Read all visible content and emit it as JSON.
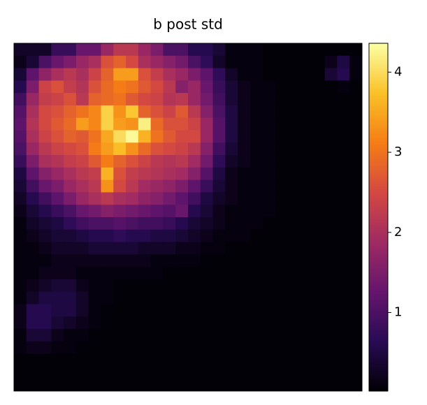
{
  "chart_data": {
    "type": "heatmap",
    "title": "b post std",
    "colormap": "inferno",
    "clim": [
      0.02,
      4.36
    ],
    "cticks": [
      1,
      2,
      3,
      4
    ],
    "z": [
      [
        0.3,
        0.3,
        0.3,
        0.8,
        0.8,
        1.3,
        1.3,
        1.8,
        2.2,
        2.2,
        1.8,
        1.5,
        1.0,
        1.0,
        0.6,
        0.6,
        0.4,
        0.1,
        0.1,
        0.1,
        0.05,
        0.05,
        0.05,
        0.05,
        0.05,
        0.05,
        0.05,
        0.05
      ],
      [
        0.2,
        0.4,
        1.0,
        1.3,
        1.5,
        1.8,
        2.0,
        2.6,
        2.8,
        2.5,
        2.0,
        1.8,
        1.6,
        1.4,
        1.0,
        0.7,
        0.3,
        0.1,
        0.1,
        0.1,
        0.05,
        0.05,
        0.05,
        0.05,
        0.05,
        0.2,
        0.5,
        0.1
      ],
      [
        0.4,
        1.2,
        1.7,
        2.0,
        2.2,
        2.0,
        2.4,
        2.8,
        3.4,
        3.4,
        2.6,
        2.3,
        2.0,
        1.8,
        1.5,
        1.2,
        0.7,
        0.3,
        0.1,
        0.1,
        0.05,
        0.05,
        0.05,
        0.05,
        0.05,
        0.4,
        0.6,
        0.1
      ],
      [
        0.6,
        1.5,
        2.4,
        2.6,
        2.3,
        2.1,
        2.6,
        2.9,
        3.1,
        3.0,
        2.7,
        2.5,
        2.2,
        1.6,
        1.8,
        1.3,
        0.8,
        0.4,
        0.2,
        0.1,
        0.1,
        0.05,
        0.05,
        0.05,
        0.05,
        0.05,
        0.1,
        0.05
      ],
      [
        0.9,
        1.8,
        2.3,
        2.4,
        2.6,
        2.2,
        2.8,
        2.9,
        3.0,
        2.7,
        2.5,
        2.4,
        2.1,
        2.2,
        1.8,
        1.4,
        0.9,
        0.4,
        0.2,
        0.1,
        0.1,
        0.05,
        0.05,
        0.05,
        0.05,
        0.05,
        0.05,
        0.05
      ],
      [
        1.1,
        2.0,
        2.5,
        2.6,
        2.8,
        3.0,
        3.2,
        3.9,
        3.3,
        3.8,
        2.8,
        2.6,
        2.4,
        2.7,
        2.2,
        1.6,
        1.0,
        0.5,
        0.2,
        0.1,
        0.1,
        0.05,
        0.05,
        0.05,
        0.05,
        0.05,
        0.05,
        0.05
      ],
      [
        1.2,
        2.1,
        2.5,
        2.7,
        2.9,
        3.4,
        3.2,
        3.9,
        3.4,
        3.3,
        4.2,
        2.9,
        2.6,
        2.6,
        2.4,
        1.8,
        1.1,
        0.5,
        0.2,
        0.1,
        0.1,
        0.05,
        0.05,
        0.05,
        0.05,
        0.05,
        0.05,
        0.05
      ],
      [
        1.1,
        2.0,
        2.4,
        2.6,
        2.8,
        2.7,
        3.0,
        3.5,
        4.0,
        4.3,
        3.6,
        3.0,
        2.7,
        2.5,
        2.5,
        1.8,
        1.1,
        0.5,
        0.2,
        0.1,
        0.1,
        0.05,
        0.05,
        0.05,
        0.05,
        0.05,
        0.05,
        0.05
      ],
      [
        1.0,
        1.8,
        2.2,
        2.4,
        2.5,
        2.6,
        3.1,
        3.4,
        3.7,
        3.3,
        2.9,
        2.6,
        2.5,
        2.4,
        2.2,
        1.6,
        0.9,
        0.4,
        0.2,
        0.1,
        0.1,
        0.05,
        0.05,
        0.05,
        0.05,
        0.05,
        0.05,
        0.05
      ],
      [
        0.8,
        1.5,
        2.0,
        2.1,
        2.3,
        2.4,
        2.7,
        3.1,
        2.8,
        2.6,
        2.4,
        2.2,
        2.1,
        2.2,
        1.9,
        1.4,
        0.7,
        0.3,
        0.2,
        0.1,
        0.1,
        0.05,
        0.05,
        0.05,
        0.05,
        0.05,
        0.05,
        0.05
      ],
      [
        0.5,
        1.2,
        1.6,
        1.8,
        2.0,
        2.2,
        2.3,
        3.6,
        2.6,
        2.3,
        2.2,
        2.1,
        2.0,
        1.9,
        1.6,
        1.1,
        0.5,
        0.2,
        0.1,
        0.1,
        0.1,
        0.05,
        0.05,
        0.05,
        0.05,
        0.05,
        0.05,
        0.05
      ],
      [
        0.4,
        0.9,
        1.3,
        1.5,
        1.8,
        2.0,
        2.2,
        3.3,
        2.5,
        2.2,
        1.9,
        1.8,
        1.7,
        1.5,
        1.2,
        0.8,
        0.4,
        0.2,
        0.1,
        0.1,
        0.1,
        0.05,
        0.05,
        0.05,
        0.05,
        0.05,
        0.05,
        0.05
      ],
      [
        0.3,
        0.6,
        0.9,
        1.2,
        1.5,
        1.8,
        2.0,
        2.2,
        2.0,
        1.9,
        1.7,
        1.6,
        1.4,
        1.2,
        0.9,
        0.5,
        0.3,
        0.2,
        0.1,
        0.1,
        0.1,
        0.05,
        0.05,
        0.05,
        0.05,
        0.05,
        0.05,
        0.05
      ],
      [
        0.2,
        0.4,
        0.6,
        0.8,
        1.0,
        1.3,
        1.4,
        1.6,
        1.5,
        1.4,
        1.3,
        1.2,
        1.1,
        1.3,
        0.6,
        0.4,
        0.2,
        0.1,
        0.1,
        0.1,
        0.1,
        0.05,
        0.05,
        0.05,
        0.05,
        0.05,
        0.05,
        0.05
      ],
      [
        0.1,
        0.3,
        0.4,
        0.5,
        0.7,
        0.9,
        1.0,
        1.0,
        1.1,
        1.0,
        0.9,
        0.9,
        0.8,
        0.6,
        0.4,
        0.3,
        0.2,
        0.1,
        0.1,
        0.1,
        0.05,
        0.05,
        0.05,
        0.05,
        0.05,
        0.05,
        0.05,
        0.05
      ],
      [
        0.1,
        0.2,
        0.3,
        0.4,
        0.4,
        0.5,
        0.6,
        0.6,
        0.7,
        0.6,
        0.6,
        0.5,
        0.5,
        0.4,
        0.3,
        0.2,
        0.1,
        0.1,
        0.1,
        0.05,
        0.05,
        0.05,
        0.05,
        0.05,
        0.05,
        0.05,
        0.05,
        0.05
      ],
      [
        0.1,
        0.1,
        0.2,
        0.3,
        0.3,
        0.3,
        0.4,
        0.4,
        0.4,
        0.4,
        0.3,
        0.3,
        0.3,
        0.2,
        0.2,
        0.1,
        0.1,
        0.05,
        0.05,
        0.05,
        0.05,
        0.05,
        0.05,
        0.05,
        0.05,
        0.05,
        0.05,
        0.05
      ],
      [
        0.1,
        0.1,
        0.1,
        0.2,
        0.2,
        0.2,
        0.2,
        0.2,
        0.2,
        0.2,
        0.2,
        0.1,
        0.1,
        0.1,
        0.1,
        0.05,
        0.05,
        0.05,
        0.05,
        0.05,
        0.05,
        0.05,
        0.05,
        0.05,
        0.05,
        0.05,
        0.05,
        0.05
      ],
      [
        0.1,
        0.1,
        0.2,
        0.2,
        0.2,
        0.1,
        0.1,
        0.1,
        0.1,
        0.1,
        0.1,
        0.1,
        0.05,
        0.05,
        0.05,
        0.05,
        0.05,
        0.05,
        0.05,
        0.05,
        0.05,
        0.05,
        0.05,
        0.05,
        0.05,
        0.05,
        0.05,
        0.05
      ],
      [
        0.1,
        0.2,
        0.3,
        0.4,
        0.4,
        0.2,
        0.1,
        0.1,
        0.05,
        0.05,
        0.05,
        0.05,
        0.05,
        0.05,
        0.05,
        0.05,
        0.05,
        0.05,
        0.05,
        0.05,
        0.05,
        0.05,
        0.05,
        0.05,
        0.05,
        0.05,
        0.05,
        0.05
      ],
      [
        0.1,
        0.3,
        0.5,
        0.5,
        0.5,
        0.3,
        0.1,
        0.1,
        0.05,
        0.05,
        0.05,
        0.05,
        0.05,
        0.05,
        0.05,
        0.05,
        0.05,
        0.05,
        0.05,
        0.05,
        0.05,
        0.05,
        0.05,
        0.05,
        0.05,
        0.05,
        0.05,
        0.05
      ],
      [
        0.2,
        0.6,
        0.6,
        0.5,
        0.5,
        0.3,
        0.1,
        0.05,
        0.05,
        0.05,
        0.05,
        0.05,
        0.05,
        0.05,
        0.05,
        0.05,
        0.05,
        0.05,
        0.05,
        0.05,
        0.05,
        0.05,
        0.05,
        0.05,
        0.05,
        0.05,
        0.05,
        0.05
      ],
      [
        0.2,
        0.6,
        0.6,
        0.4,
        0.3,
        0.2,
        0.1,
        0.05,
        0.05,
        0.05,
        0.05,
        0.05,
        0.05,
        0.05,
        0.05,
        0.05,
        0.05,
        0.05,
        0.05,
        0.05,
        0.05,
        0.05,
        0.05,
        0.05,
        0.05,
        0.05,
        0.05,
        0.05
      ],
      [
        0.1,
        0.4,
        0.4,
        0.2,
        0.1,
        0.1,
        0.05,
        0.05,
        0.05,
        0.05,
        0.05,
        0.05,
        0.05,
        0.05,
        0.05,
        0.05,
        0.05,
        0.05,
        0.05,
        0.05,
        0.05,
        0.05,
        0.05,
        0.05,
        0.05,
        0.05,
        0.05,
        0.05
      ],
      [
        0.1,
        0.2,
        0.2,
        0.1,
        0.1,
        0.05,
        0.05,
        0.05,
        0.05,
        0.05,
        0.05,
        0.05,
        0.05,
        0.05,
        0.05,
        0.05,
        0.05,
        0.05,
        0.05,
        0.05,
        0.05,
        0.05,
        0.05,
        0.05,
        0.05,
        0.05,
        0.05,
        0.05
      ],
      [
        0.05,
        0.05,
        0.05,
        0.05,
        0.05,
        0.05,
        0.05,
        0.05,
        0.05,
        0.05,
        0.05,
        0.05,
        0.05,
        0.05,
        0.05,
        0.05,
        0.05,
        0.05,
        0.05,
        0.05,
        0.05,
        0.05,
        0.05,
        0.05,
        0.05,
        0.05,
        0.05,
        0.05
      ],
      [
        0.05,
        0.05,
        0.05,
        0.05,
        0.05,
        0.05,
        0.05,
        0.05,
        0.05,
        0.05,
        0.05,
        0.05,
        0.05,
        0.05,
        0.05,
        0.05,
        0.05,
        0.05,
        0.05,
        0.05,
        0.05,
        0.05,
        0.05,
        0.05,
        0.05,
        0.05,
        0.05,
        0.05
      ],
      [
        0.05,
        0.05,
        0.05,
        0.05,
        0.05,
        0.05,
        0.05,
        0.05,
        0.05,
        0.05,
        0.05,
        0.05,
        0.05,
        0.05,
        0.05,
        0.05,
        0.05,
        0.05,
        0.05,
        0.05,
        0.05,
        0.05,
        0.05,
        0.05,
        0.05,
        0.05,
        0.05,
        0.05
      ]
    ]
  }
}
